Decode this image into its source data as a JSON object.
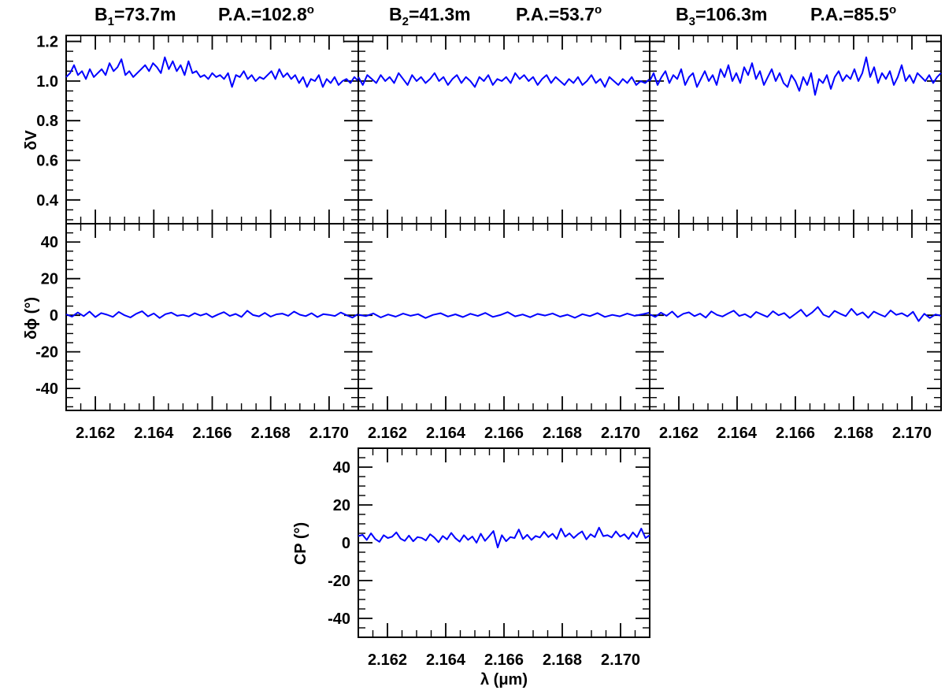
{
  "panel_titles": [
    {
      "baseline": "B",
      "baseline_sub": "1",
      "length": "=73.7m",
      "pa": "P.A.=102.8",
      "pa_sup": "o"
    },
    {
      "baseline": "B",
      "baseline_sub": "2",
      "length": "=41.3m",
      "pa": "P.A.=53.7",
      "pa_sup": "o"
    },
    {
      "baseline": "B",
      "baseline_sub": "3",
      "length": "=106.3m",
      "pa": "P.A.=85.5",
      "pa_sup": "o"
    }
  ],
  "axis_labels": {
    "dv": "δV",
    "dphi": "δϕ (°)",
    "cp": "CP (°)",
    "x": "λ (μm)"
  },
  "colors": {
    "line": "#0000ff",
    "axes": "#000000"
  },
  "chart_data": [
    {
      "id": "dv-b1",
      "type": "line",
      "row": "dv",
      "xlim": [
        2.161,
        2.171
      ],
      "ylim": [
        0.28,
        1.23
      ],
      "yticks": [
        "0.4",
        "0.6",
        "0.8",
        "1.0",
        "1.2"
      ],
      "xticks": [
        "2.162",
        "2.164",
        "2.166",
        "2.168",
        "2.170"
      ],
      "show_xticklabels": false,
      "series": [
        {
          "x_start": 2.161,
          "x_end": 2.171,
          "y": [
            1.02,
            1.04,
            1.08,
            1.03,
            1.05,
            1.01,
            1.06,
            1.02,
            1.04,
            1.06,
            1.03,
            1.09,
            1.05,
            1.07,
            1.11,
            1.03,
            1.05,
            1.02,
            1.04,
            1.06,
            1.08,
            1.05,
            1.09,
            1.07,
            1.04,
            1.12,
            1.06,
            1.1,
            1.05,
            1.08,
            1.03,
            1.1,
            1.04,
            1.05,
            1.02,
            1.03,
            1.01,
            1.04,
            1.02,
            1.03,
            1.01,
            1.04,
            0.97,
            1.03,
            1.02,
            1.05,
            1.01,
            1.03,
            1.0,
            1.02,
            1.01,
            1.03,
            1.05,
            1.01,
            1.06,
            1.02,
            1.04,
            1.01,
            1.03,
            0.99,
            1.02,
            0.97,
            1.01,
            1.0,
            1.03,
            0.97,
            1.01,
            0.99,
            1.02,
            0.98,
            1.0,
            1.01,
            0.99,
            1.02,
            1.0
          ]
        }
      ]
    },
    {
      "id": "dv-b2",
      "type": "line",
      "row": "dv",
      "xlim": [
        2.161,
        2.171
      ],
      "ylim": [
        0.28,
        1.23
      ],
      "yticks": [
        "0.4",
        "0.6",
        "0.8",
        "1.0",
        "1.2"
      ],
      "xticks": [
        "2.162",
        "2.164",
        "2.166",
        "2.168",
        "2.170"
      ],
      "show_xticklabels": false,
      "series": [
        {
          "x_start": 2.161,
          "x_end": 2.171,
          "y": [
            1.02,
            0.98,
            1.03,
            1.01,
            0.99,
            1.03,
            1.0,
            1.02,
            0.99,
            1.04,
            1.01,
            0.98,
            1.03,
            1.0,
            1.02,
            0.99,
            1.01,
            1.04,
            1.0,
            1.02,
            0.98,
            1.01,
            1.03,
            0.99,
            1.02,
            1.0,
            0.97,
            1.02,
            1.0,
            1.03,
            0.98,
            1.01,
            1.0,
            1.02,
            0.99,
            1.04,
            1.01,
            1.03,
            1.0,
            1.02,
            0.98,
            1.01,
            1.03,
            0.99,
            1.02,
            1.0,
            0.98,
            1.01,
            0.99,
            1.02,
            0.98,
            1.0,
            1.03,
            0.99,
            1.01,
            0.97,
            1.02,
            1.0,
            0.98,
            1.01,
            0.99,
            1.02,
            0.98,
            1.0,
            0.99,
            1.01
          ]
        }
      ]
    },
    {
      "id": "dv-b3",
      "type": "line",
      "row": "dv",
      "xlim": [
        2.161,
        2.171
      ],
      "ylim": [
        0.28,
        1.23
      ],
      "yticks": [
        "0.4",
        "0.6",
        "0.8",
        "1.0",
        "1.2"
      ],
      "xticks": [
        "2.162",
        "2.164",
        "2.166",
        "2.168",
        "2.170"
      ],
      "show_xticklabels": false,
      "series": [
        {
          "x_start": 2.161,
          "x_end": 2.171,
          "y": [
            1.0,
            1.04,
            0.98,
            1.02,
            1.05,
            0.99,
            1.03,
            1.01,
            1.06,
            0.98,
            1.02,
            1.04,
            0.97,
            1.01,
            1.05,
            1.0,
            1.03,
            0.98,
            1.06,
            1.02,
            1.08,
            1.0,
            1.04,
            0.99,
            1.07,
            1.03,
            1.09,
            1.01,
            1.05,
            0.98,
            1.02,
            1.06,
            1.0,
            1.04,
            0.99,
            0.97,
            1.03,
            1.0,
            0.95,
            1.02,
            0.98,
            1.04,
            0.93,
            1.01,
            0.99,
            1.03,
            0.96,
            1.02,
            1.05,
            1.0,
            1.03,
            1.01,
            1.06,
            1.0,
            1.04,
            1.12,
            1.02,
            1.07,
            0.99,
            1.04,
            1.01,
            1.05,
            0.98,
            1.02,
            1.08,
            1.0,
            1.03,
            0.99,
            1.04,
            1.02,
            1.0,
            1.03,
            0.99,
            1.02,
            1.04
          ]
        }
      ]
    },
    {
      "id": "dphi-b1",
      "type": "line",
      "row": "dphi",
      "xlim": [
        2.161,
        2.171
      ],
      "ylim": [
        -52,
        50
      ],
      "yticks": [
        "-40",
        "-20",
        "0",
        "20",
        "40"
      ],
      "xticks": [
        "2.162",
        "2.164",
        "2.166",
        "2.168",
        "2.170"
      ],
      "show_xticklabels": true,
      "series": [
        {
          "x_start": 2.161,
          "x_end": 2.171,
          "y": [
            0.5,
            -0.8,
            1.5,
            -0.5,
            2.0,
            -1.0,
            1.2,
            0.3,
            -0.9,
            1.8,
            0.0,
            -1.2,
            0.8,
            2.2,
            -0.6,
            1.0,
            -1.5,
            0.6,
            1.4,
            -0.3,
            0.2,
            -0.7,
            1.1,
            -0.2,
            0.9,
            -1.1,
            0.4,
            1.7,
            -0.4,
            0.7,
            -0.9,
            2.5,
            0.1,
            -0.6,
            1.3,
            -0.8,
            0.5,
            0.9,
            -0.3,
            2.0,
            0.3,
            -0.5,
            1.1,
            -1.0,
            0.6,
            0.2,
            -0.4,
            1.5,
            0.0,
            -1.3,
            0.7
          ]
        }
      ]
    },
    {
      "id": "dphi-b2",
      "type": "line",
      "row": "dphi",
      "xlim": [
        2.161,
        2.171
      ],
      "ylim": [
        -52,
        50
      ],
      "yticks": [
        "-40",
        "-20",
        "0",
        "20",
        "40"
      ],
      "xticks": [
        "2.162",
        "2.164",
        "2.166",
        "2.168",
        "2.170"
      ],
      "show_xticklabels": true,
      "series": [
        {
          "x_start": 2.161,
          "x_end": 2.171,
          "y": [
            0.3,
            -0.5,
            1.0,
            -1.2,
            0.4,
            -0.8,
            0.9,
            -0.3,
            0.6,
            -1.5,
            0.2,
            1.1,
            -0.7,
            0.5,
            -1.0,
            0.8,
            -0.4,
            1.3,
            -0.9,
            0.1,
            1.7,
            -0.6,
            0.4,
            -1.1,
            0.7,
            -0.2,
            1.0,
            -0.8,
            0.3,
            -1.4,
            0.6,
            -0.5,
            1.2,
            -0.9,
            0.2,
            -0.6,
            0.9,
            -0.3,
            0.5,
            1.4
          ]
        }
      ]
    },
    {
      "id": "dphi-b3",
      "type": "line",
      "row": "dphi",
      "xlim": [
        2.161,
        2.171
      ],
      "ylim": [
        -52,
        50
      ],
      "yticks": [
        "-40",
        "-20",
        "0",
        "20",
        "40"
      ],
      "xticks": [
        "2.162",
        "2.164",
        "2.166",
        "2.168",
        "2.170"
      ],
      "show_xticklabels": true,
      "series": [
        {
          "x_start": 2.161,
          "x_end": 2.171,
          "y": [
            0.5,
            -0.9,
            1.4,
            -0.3,
            2.0,
            -1.1,
            0.8,
            1.6,
            -0.5,
            0.9,
            -1.3,
            2.1,
            0.2,
            -0.7,
            1.0,
            2.5,
            -0.4,
            0.6,
            -1.2,
            1.8,
            0.4,
            -0.9,
            2.2,
            0.0,
            1.2,
            -1.5,
            0.7,
            3.0,
            -0.6,
            1.5,
            4.5,
            0.3,
            -1.0,
            2.4,
            0.8,
            -0.5,
            3.5,
            0.1,
            1.6,
            -1.4,
            2.0,
            0.5,
            -0.8,
            2.6,
            0.2,
            1.1,
            -0.6,
            1.9,
            -3.2,
            0.8,
            -1.5,
            0.4,
            -0.3
          ]
        }
      ]
    },
    {
      "id": "cp",
      "type": "line",
      "row": "cp",
      "xlim": [
        2.161,
        2.171
      ],
      "ylim": [
        -50,
        50
      ],
      "yticks": [
        "-40",
        "-20",
        "0",
        "20",
        "40"
      ],
      "xticks": [
        "2.162",
        "2.164",
        "2.166",
        "2.168",
        "2.170"
      ],
      "show_xticklabels": true,
      "series": [
        {
          "x_start": 2.161,
          "x_end": 2.171,
          "y": [
            3.5,
            4.2,
            1.5,
            5.0,
            2.0,
            0.5,
            4.0,
            2.5,
            3.2,
            5.5,
            2.2,
            1.0,
            3.8,
            0.8,
            3.0,
            2.6,
            1.2,
            4.5,
            2.8,
            0.3,
            3.6,
            1.8,
            5.2,
            2.4,
            0.6,
            4.0,
            1.5,
            3.3,
            0.0,
            4.8,
            1.0,
            3.5,
            6.2,
            -2.5,
            4.0,
            0.8,
            3.0,
            2.5,
            7.0,
            2.0,
            4.2,
            1.5,
            3.6,
            2.8,
            5.8,
            3.0,
            4.8,
            2.0,
            7.5,
            3.2,
            5.0,
            2.5,
            4.5,
            6.0,
            1.8,
            4.5,
            3.0,
            8.0,
            3.5,
            4.0,
            2.8,
            6.0,
            3.2,
            4.5,
            2.0,
            5.5,
            3.0,
            7.5,
            2.5,
            4.0
          ]
        }
      ]
    }
  ]
}
